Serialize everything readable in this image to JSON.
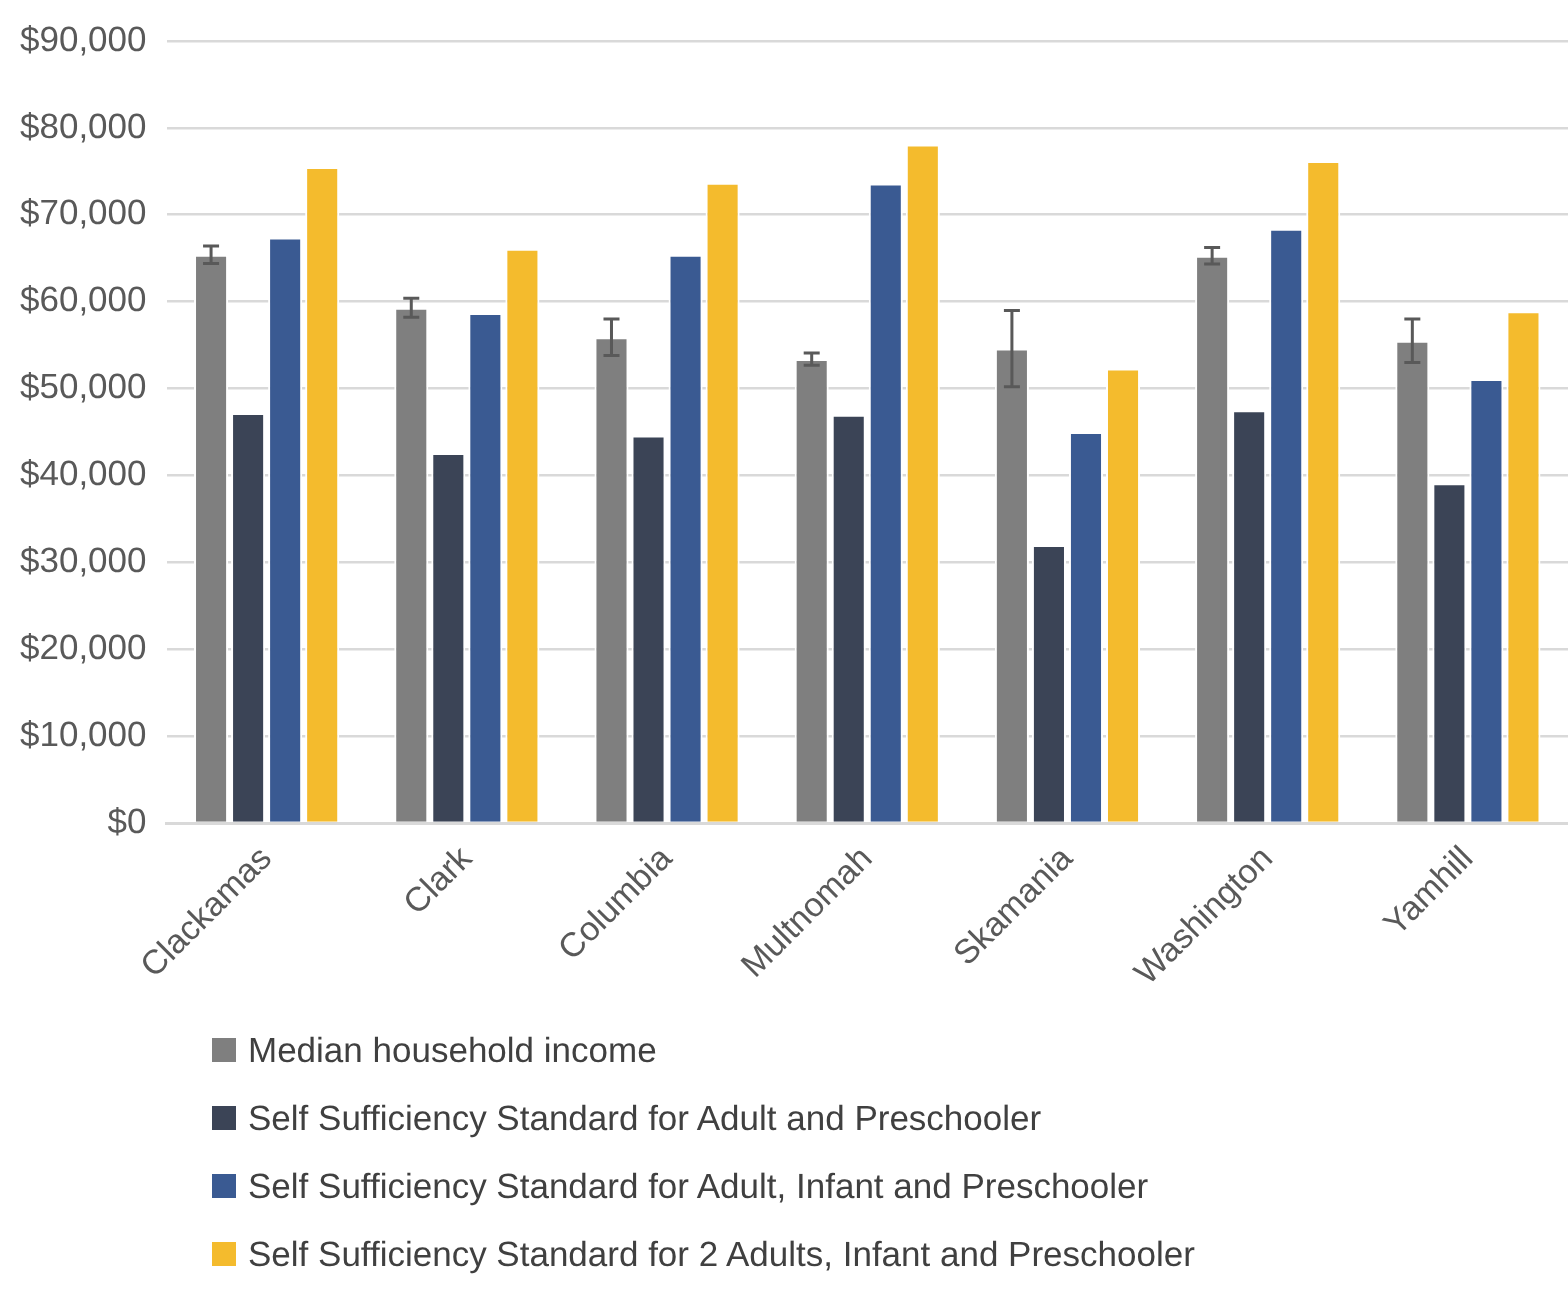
{
  "chart_data": {
    "type": "bar",
    "categories": [
      "Clackamas",
      "Clark",
      "Columbia",
      "Multnomah",
      "Skamania",
      "Washington",
      "Yamhill"
    ],
    "series": [
      {
        "name": "Median household income",
        "color": "#7f7f7f",
        "values": [
          65400,
          59300,
          55900,
          53400,
          54600,
          65300,
          55500
        ],
        "errors": [
          1000,
          1100,
          2100,
          700,
          4400,
          950,
          2500
        ]
      },
      {
        "name": "Self Sufficiency Standard for Adult and Preschooler",
        "color": "#3b4456",
        "values": [
          47200,
          42600,
          44600,
          47000,
          32000,
          47500,
          39100
        ]
      },
      {
        "name": "Self Sufficiency Standard for Adult, Infant and Preschooler",
        "color": "#3a5a92",
        "values": [
          67400,
          58700,
          65400,
          73600,
          45000,
          68400,
          51100
        ]
      },
      {
        "name": "Self Sufficiency Standard for 2 Adults, Infant and Preschooler",
        "color": "#f4bb2d",
        "values": [
          75500,
          66100,
          73700,
          78100,
          52300,
          76200,
          58900
        ]
      }
    ],
    "ylim": [
      0,
      90000
    ],
    "yticks": [
      {
        "value": 0,
        "label": "$0"
      },
      {
        "value": 10000,
        "label": "$10,000"
      },
      {
        "value": 20000,
        "label": "$20,000"
      },
      {
        "value": 30000,
        "label": "$30,000"
      },
      {
        "value": 40000,
        "label": "$40,000"
      },
      {
        "value": 50000,
        "label": "$50,000"
      },
      {
        "value": 60000,
        "label": "$60,000"
      },
      {
        "value": 70000,
        "label": "$70,000"
      },
      {
        "value": 80000,
        "label": "$80,000"
      },
      {
        "value": 90000,
        "label": "$90,000"
      }
    ],
    "grid": "y",
    "legend": "bottom"
  }
}
